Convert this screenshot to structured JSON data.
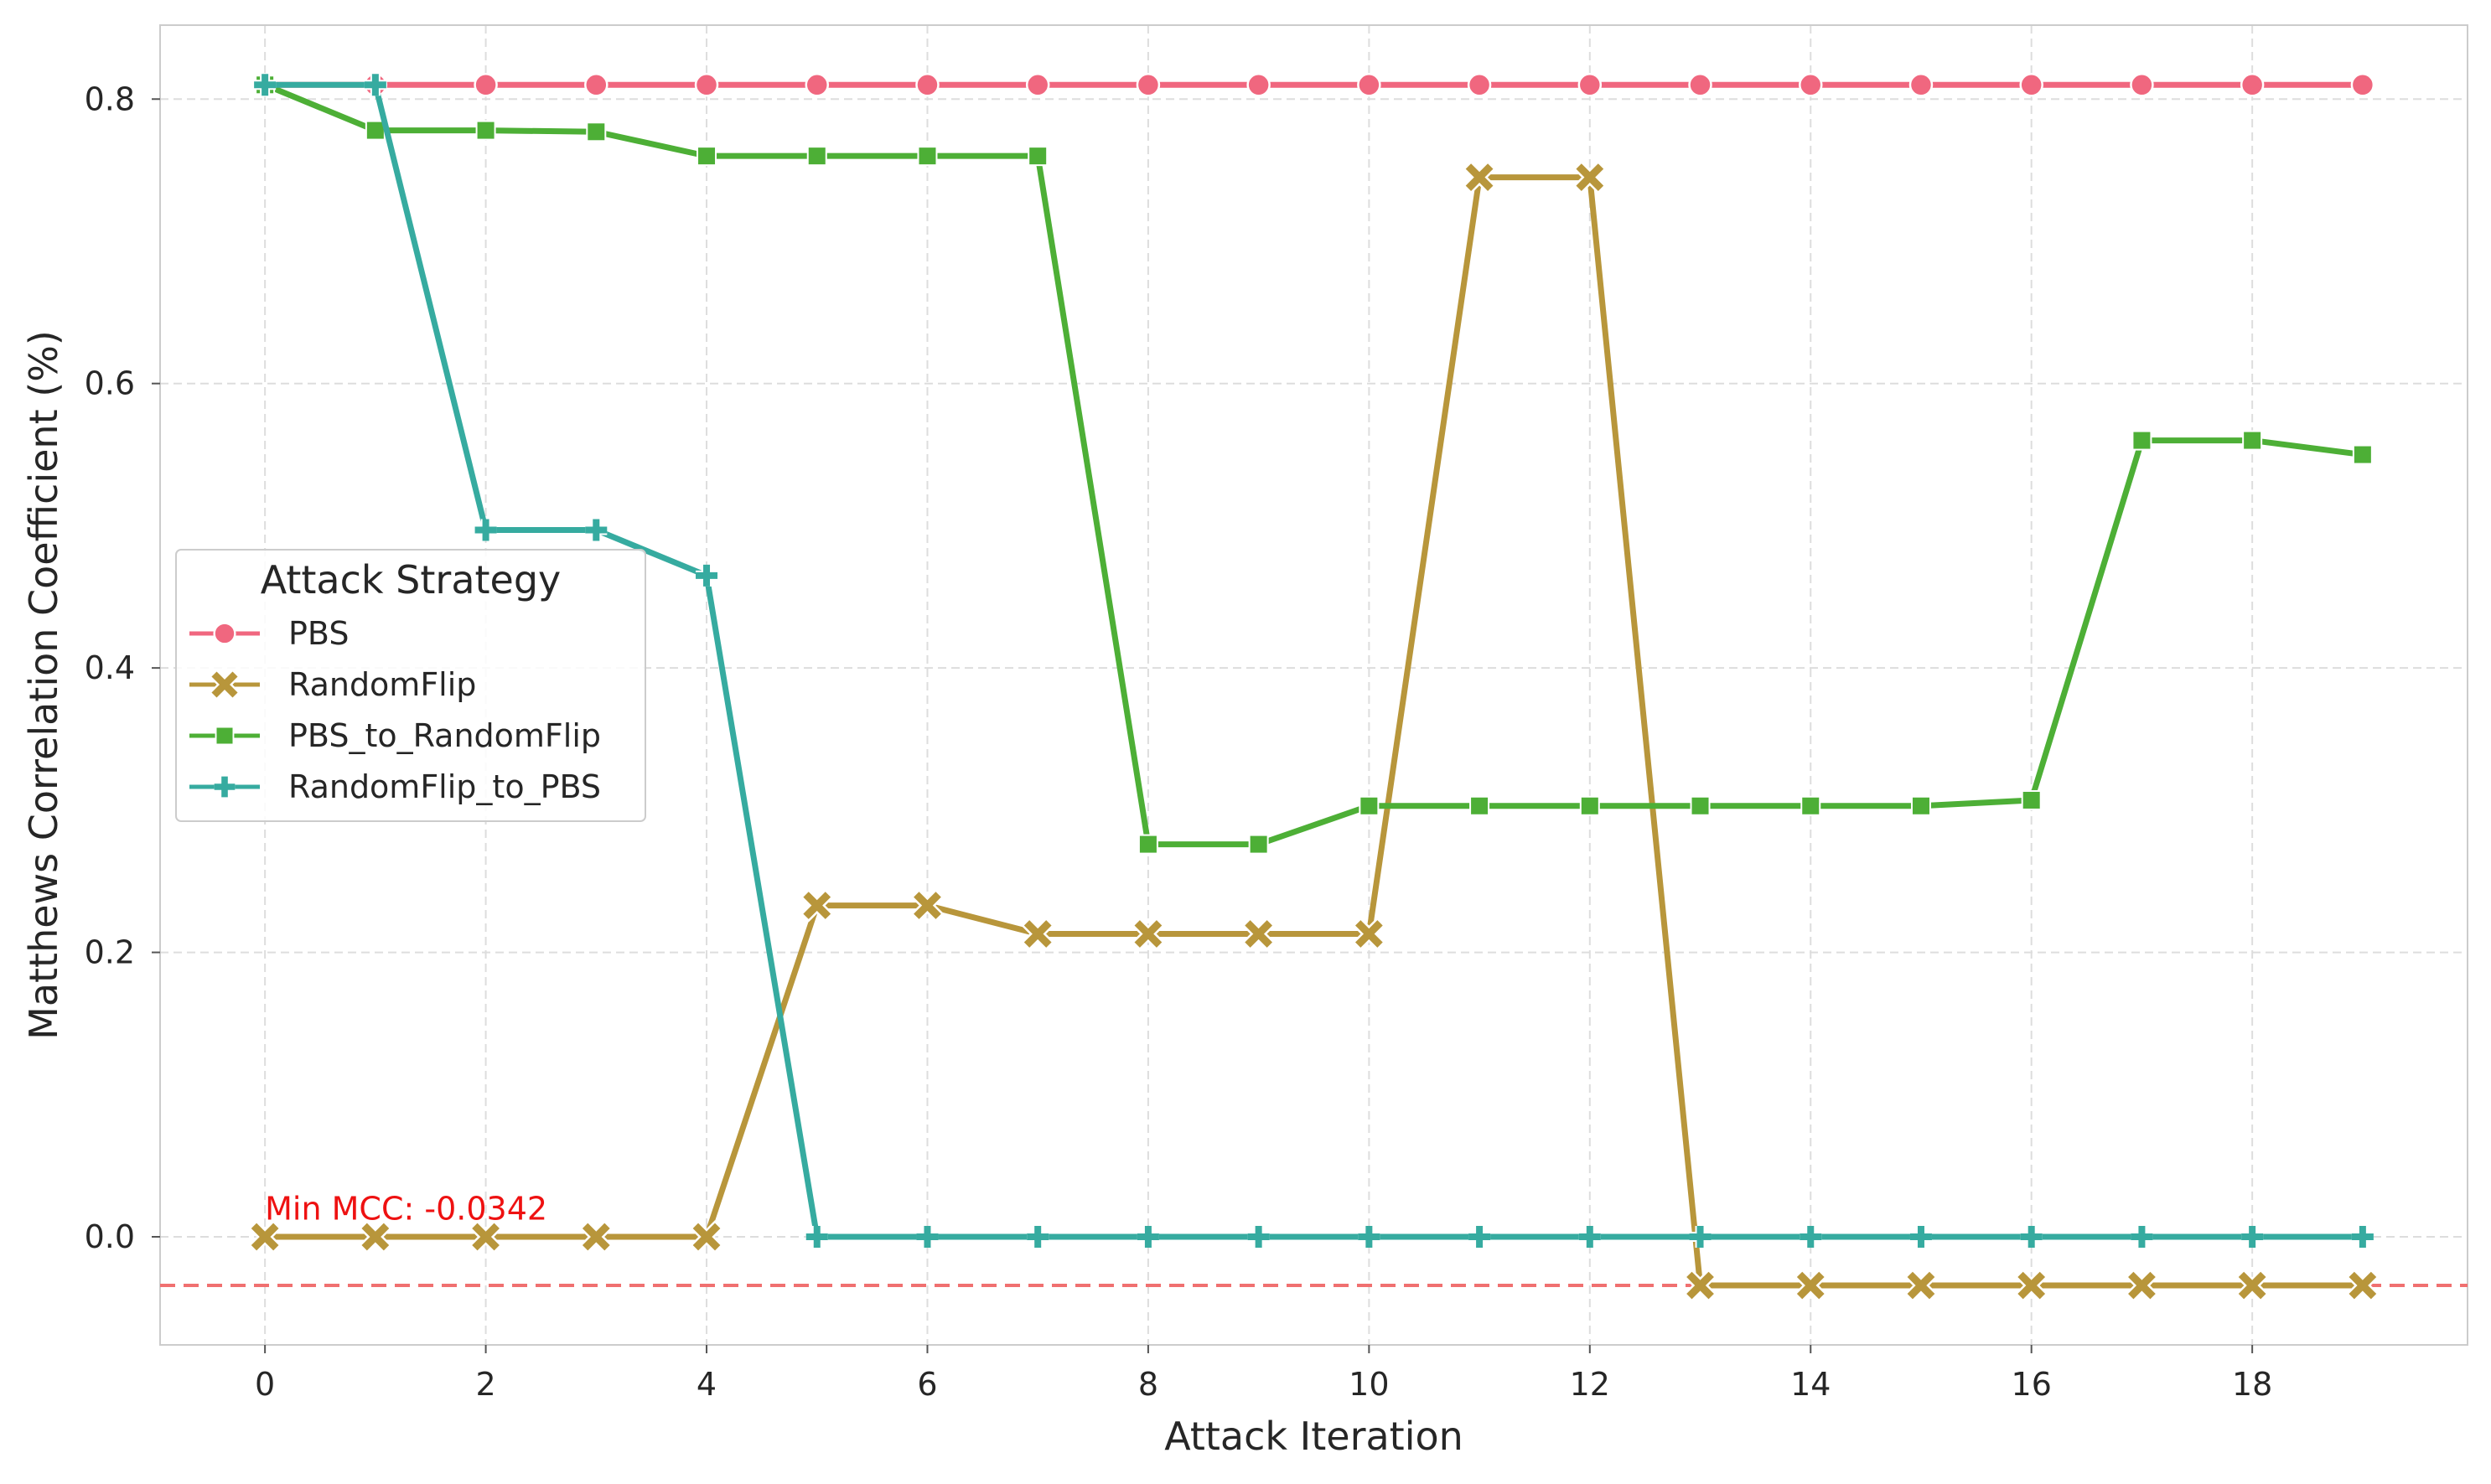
{
  "chart_data": {
    "type": "line",
    "title": "",
    "xlabel": "Attack Iteration",
    "ylabel": "Matthews Correlation Coefficient (%)",
    "x": [
      0,
      1,
      2,
      3,
      4,
      5,
      6,
      7,
      8,
      9,
      10,
      11,
      12,
      13,
      14,
      15,
      16,
      17,
      18,
      19
    ],
    "xlim": [
      -0.95,
      19.95
    ],
    "ylim": [
      -0.076,
      0.852
    ],
    "xticks": [
      0,
      2,
      4,
      6,
      8,
      10,
      12,
      14,
      16,
      18
    ],
    "yticks": [
      0.0,
      0.2,
      0.4,
      0.6,
      0.8
    ],
    "xtick_labels": [
      "0",
      "2",
      "4",
      "6",
      "8",
      "10",
      "12",
      "14",
      "16",
      "18"
    ],
    "ytick_labels": [
      "0.0",
      "0.2",
      "0.4",
      "0.6",
      "0.8"
    ],
    "grid": true,
    "legend": {
      "title": "Attack Strategy",
      "placement": "center-left"
    },
    "series": [
      {
        "name": "PBS",
        "color": "#f0677f",
        "marker": "circle",
        "values": [
          0.81,
          0.81,
          0.81,
          0.81,
          0.81,
          0.81,
          0.81,
          0.81,
          0.81,
          0.81,
          0.81,
          0.81,
          0.81,
          0.81,
          0.81,
          0.81,
          0.81,
          0.81,
          0.81,
          0.81
        ]
      },
      {
        "name": "RandomFlip",
        "color": "#b8963b",
        "marker": "x",
        "values": [
          0.0,
          0.0,
          0.0,
          0.0,
          0.0,
          0.233,
          0.233,
          0.213,
          0.213,
          0.213,
          0.213,
          0.745,
          0.745,
          -0.0342,
          -0.0342,
          -0.0342,
          -0.0342,
          -0.0342,
          -0.0342,
          -0.0342
        ]
      },
      {
        "name": "PBS_to_RandomFlip",
        "color": "#4daf36",
        "marker": "square",
        "values": [
          0.81,
          0.778,
          0.778,
          0.777,
          0.76,
          0.76,
          0.76,
          0.76,
          0.276,
          0.276,
          0.303,
          0.303,
          0.303,
          0.303,
          0.303,
          0.303,
          0.307,
          0.56,
          0.56,
          0.55
        ]
      },
      {
        "name": "RandomFlip_to_PBS",
        "color": "#36aba0",
        "marker": "plus",
        "values": [
          0.81,
          0.81,
          0.497,
          0.497,
          0.465,
          0.0,
          0.0,
          0.0,
          0.0,
          0.0,
          0.0,
          0.0,
          0.0,
          0.0,
          0.0,
          0.0,
          0.0,
          0.0,
          0.0,
          0.0
        ]
      }
    ],
    "reference_line": {
      "y": -0.0342,
      "color": "#f07070",
      "style": "dashed"
    },
    "annotation": {
      "text": "Min MCC: -0.0342",
      "x": 0,
      "y": 0.012,
      "color": "#ee1111"
    }
  }
}
